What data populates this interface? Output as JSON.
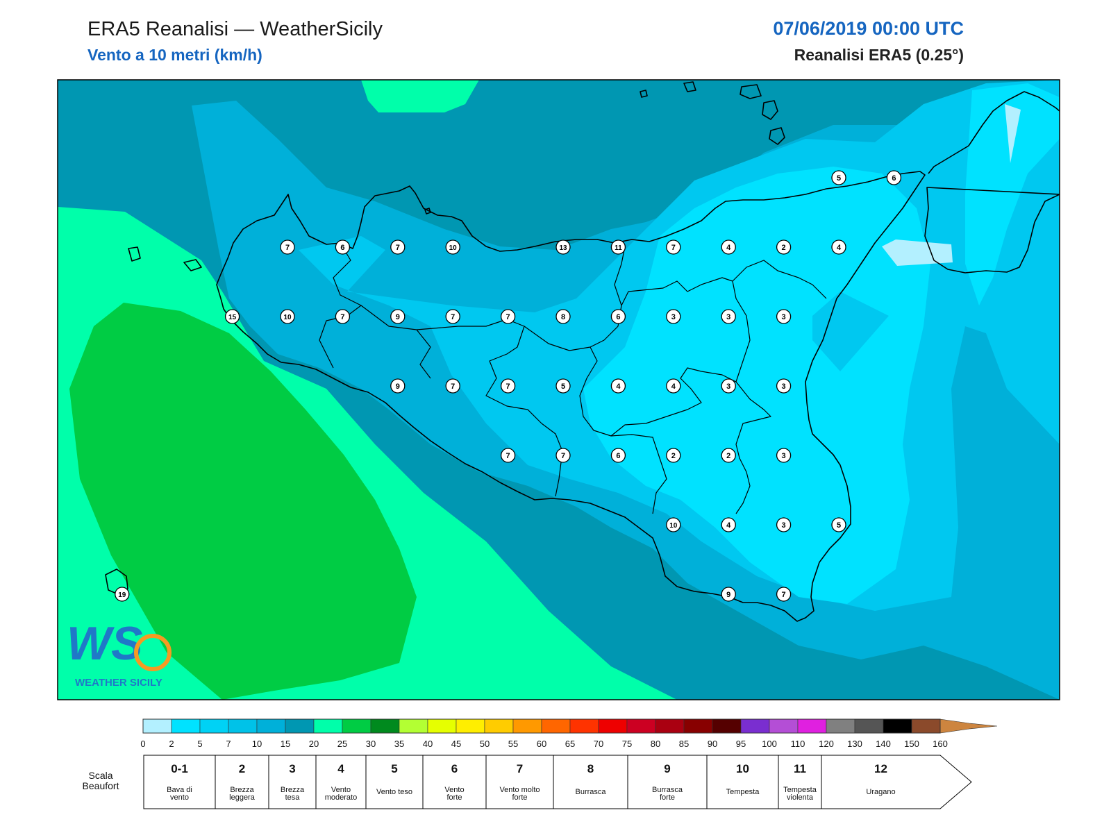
{
  "header": {
    "title": "ERA5 Reanalisi — WeatherSicily",
    "subtitle": "Vento a 10 metri (km/h)",
    "datetime": "07/06/2019 00:00 UTC",
    "model": "Reanalisi ERA5 (0.25°)"
  },
  "colors": {
    "land_outline": "#000000",
    "title_blue": "#1565c0",
    "zone_darkest": "#0097b2",
    "zone_mid": "#00b0d9",
    "zone_light": "#00c8f0",
    "zone_lightest": "#00e2ff",
    "zone_pale": "#b3f0ff",
    "zone_mint": "#00ffaa",
    "zone_green": "#00cc44"
  },
  "logo": {
    "text": "WS",
    "caption": "WEATHER SICILY"
  },
  "stations": [
    {
      "v": "7",
      "gx": 0,
      "gy": 0
    },
    {
      "v": "6",
      "gx": 1,
      "gy": 0
    },
    {
      "v": "7",
      "gx": 2,
      "gy": 0
    },
    {
      "v": "10",
      "gx": 3,
      "gy": 0
    },
    {
      "v": "13",
      "gx": 5,
      "gy": 0
    },
    {
      "v": "11",
      "gx": 6,
      "gy": 0
    },
    {
      "v": "7",
      "gx": 7,
      "gy": 0
    },
    {
      "v": "4",
      "gx": 8,
      "gy": 0
    },
    {
      "v": "2",
      "gx": 9,
      "gy": 0
    },
    {
      "v": "4",
      "gx": 10,
      "gy": 0
    },
    {
      "v": "15",
      "gx": -1,
      "gy": 1
    },
    {
      "v": "10",
      "gx": 0,
      "gy": 1
    },
    {
      "v": "7",
      "gx": 1,
      "gy": 1
    },
    {
      "v": "9",
      "gx": 2,
      "gy": 1
    },
    {
      "v": "7",
      "gx": 3,
      "gy": 1
    },
    {
      "v": "7",
      "gx": 4,
      "gy": 1
    },
    {
      "v": "8",
      "gx": 5,
      "gy": 1
    },
    {
      "v": "6",
      "gx": 6,
      "gy": 1
    },
    {
      "v": "3",
      "gx": 7,
      "gy": 1
    },
    {
      "v": "3",
      "gx": 8,
      "gy": 1
    },
    {
      "v": "3",
      "gx": 9,
      "gy": 1
    },
    {
      "v": "9",
      "gx": 2,
      "gy": 2
    },
    {
      "v": "7",
      "gx": 3,
      "gy": 2
    },
    {
      "v": "7",
      "gx": 4,
      "gy": 2
    },
    {
      "v": "5",
      "gx": 5,
      "gy": 2
    },
    {
      "v": "4",
      "gx": 6,
      "gy": 2
    },
    {
      "v": "4",
      "gx": 7,
      "gy": 2
    },
    {
      "v": "3",
      "gx": 8,
      "gy": 2
    },
    {
      "v": "3",
      "gx": 9,
      "gy": 2
    },
    {
      "v": "7",
      "gx": 4,
      "gy": 3
    },
    {
      "v": "7",
      "gx": 5,
      "gy": 3
    },
    {
      "v": "6",
      "gx": 6,
      "gy": 3
    },
    {
      "v": "2",
      "gx": 7,
      "gy": 3
    },
    {
      "v": "2",
      "gx": 8,
      "gy": 3
    },
    {
      "v": "3",
      "gx": 9,
      "gy": 3
    },
    {
      "v": "10",
      "gx": 7,
      "gy": 4
    },
    {
      "v": "4",
      "gx": 8,
      "gy": 4
    },
    {
      "v": "3",
      "gx": 9,
      "gy": 4
    },
    {
      "v": "5",
      "gx": 10,
      "gy": 4
    },
    {
      "v": "9",
      "gx": 8,
      "gy": 5
    },
    {
      "v": "7",
      "gx": 9,
      "gy": 5
    },
    {
      "v": "5",
      "gx": 10,
      "gy": -1
    },
    {
      "v": "6",
      "gx": 11,
      "gy": -1
    },
    {
      "v": "19",
      "gx": -3,
      "gy": 5
    }
  ],
  "colorbar": {
    "ticks": [
      "0",
      "2",
      "5",
      "7",
      "10",
      "15",
      "20",
      "25",
      "30",
      "35",
      "40",
      "45",
      "50",
      "55",
      "60",
      "65",
      "70",
      "75",
      "80",
      "85",
      "90",
      "95",
      "100",
      "110",
      "120",
      "130",
      "140",
      "150",
      "160"
    ],
    "colors": [
      "#b3f0ff",
      "#00e2ff",
      "#00d2f5",
      "#00c2e8",
      "#00b0d9",
      "#0097b2",
      "#00ffaa",
      "#00cc44",
      "#008a1e",
      "#b3ff33",
      "#e6ff00",
      "#ffee00",
      "#ffcc00",
      "#ff9900",
      "#ff6600",
      "#ff3300",
      "#ee0000",
      "#cc0022",
      "#aa0011",
      "#880000",
      "#550000",
      "#7a2ed0",
      "#b44ed6",
      "#e020e0",
      "#808080",
      "#555555",
      "#000000",
      "#8b4a2b",
      "#cd853f"
    ]
  },
  "beaufort": {
    "label_line1": "Scala",
    "label_line2": "Beaufort",
    "cells": [
      {
        "num": "0-1",
        "desc1": "Bava di",
        "desc2": "vento"
      },
      {
        "num": "2",
        "desc1": "Brezza",
        "desc2": "leggera"
      },
      {
        "num": "3",
        "desc1": "Brezza",
        "desc2": "tesa"
      },
      {
        "num": "4",
        "desc1": "Vento",
        "desc2": "moderato"
      },
      {
        "num": "5",
        "desc1": "Vento teso",
        "desc2": ""
      },
      {
        "num": "6",
        "desc1": "Vento",
        "desc2": "forte"
      },
      {
        "num": "7",
        "desc1": "Vento molto",
        "desc2": "forte"
      },
      {
        "num": "8",
        "desc1": "Burrasca",
        "desc2": ""
      },
      {
        "num": "9",
        "desc1": "Burrasca",
        "desc2": "forte"
      },
      {
        "num": "10",
        "desc1": "Tempesta",
        "desc2": ""
      },
      {
        "num": "11",
        "desc1": "Tempesta",
        "desc2": "violenta"
      },
      {
        "num": "12",
        "desc1": "Uragano",
        "desc2": ""
      }
    ]
  }
}
